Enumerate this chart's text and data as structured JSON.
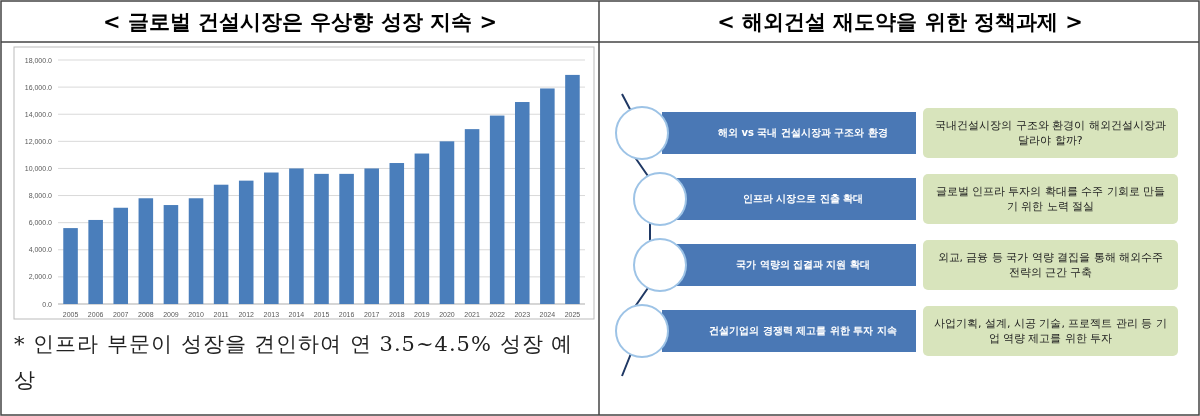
{
  "chart_data": [
    {
      "type": "bar",
      "title": "< 글로벌 건설시장은 우상향 성장 지속 >",
      "categories": [
        "2005",
        "2006",
        "2007",
        "2008",
        "2009",
        "2010",
        "2011",
        "2012",
        "2013",
        "2014",
        "2015",
        "2016",
        "2017",
        "2018",
        "2019",
        "2020",
        "2021",
        "2022",
        "2023",
        "2024",
        "2025"
      ],
      "values": [
        5600,
        6200,
        7100,
        7800,
        7300,
        7800,
        8800,
        9100,
        9700,
        10000,
        9600,
        9600,
        10000,
        10400,
        11100,
        12000,
        12900,
        13900,
        14900,
        15900,
        16900
      ],
      "color": "#4a7ebb",
      "ylim": [
        0,
        18000
      ],
      "yticks": [
        {
          "value": 0,
          "label": "0.0"
        },
        {
          "value": 2000,
          "label": "2,000.0"
        },
        {
          "value": 4000,
          "label": "4,000.0"
        },
        {
          "value": 6000,
          "label": "6,000.0"
        },
        {
          "value": 8000,
          "label": "8,000.0"
        },
        {
          "value": 10000,
          "label": "10,000.0"
        },
        {
          "value": 12000,
          "label": "12,000.0"
        },
        {
          "value": 14000,
          "label": "14,000.0"
        },
        {
          "value": 16000,
          "label": "16,000.0"
        },
        {
          "value": 18000,
          "label": "18,000.0"
        }
      ],
      "grid": "y",
      "annotations": [
        "* 인프라 부문이 성장을 견인하여 연 3.5~4.5% 성장 예상"
      ]
    },
    {
      "type": "other",
      "title": "< 해외건설 재도약을 위한 정책과제 >",
      "annotations": [
        "해외 vs 국내 건설시장과 구조와 환경",
        "국내건설시장의 구조와 환경이  해외건설시장과 달라야 할까?",
        "인프라 시장으로 진출 확대",
        "글로벌 인프라 투자의 확대를 수주 기회로 만들기 위한 노력 절실",
        "국가 역량의 집결과 지원 확대",
        "외교, 금융 등 국가 역량 결집을 통해 해외수주 전략의 근간 구축",
        "건설기업의 경쟁력 제고를 위한 투자 지속",
        "사업기획, 설계, 시공 기술, 프로젝트 관리 등 기업 역량 제고를 위한 투자"
      ]
    }
  ]
}
